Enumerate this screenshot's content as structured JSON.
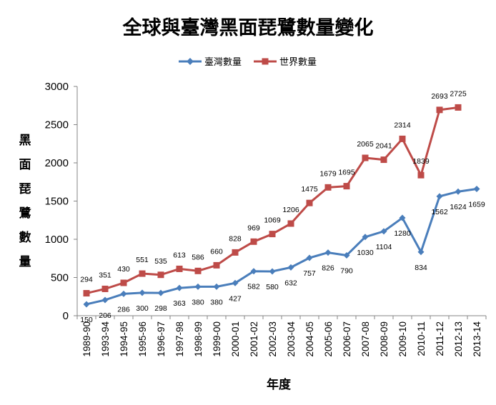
{
  "chart_data": {
    "type": "line",
    "title": "全球與臺灣黑面琵鷺數量變化",
    "xlabel": "年度",
    "ylabel": "黑面琵鷺數量",
    "ylim": [
      0,
      3000
    ],
    "yticks": [
      0,
      500,
      1000,
      1500,
      2000,
      2500,
      3000
    ],
    "grid": false,
    "legend_position": "top",
    "categories": [
      "1989-90",
      "1993-94",
      "1994-95",
      "1995-96",
      "1996-97",
      "1997-98",
      "1998-99",
      "1999-00",
      "2000-01",
      "2001-02",
      "2002-03",
      "2003-04",
      "2004-05",
      "2005-06",
      "2006-07",
      "2007-08",
      "2008-09",
      "2009-10",
      "2010-11",
      "2011-12",
      "2012-13",
      "2013-14"
    ],
    "series": [
      {
        "name": "臺灣數量",
        "color": "#4a7ebb",
        "marker": "diamond",
        "label_position": "below",
        "values": [
          150,
          206,
          286,
          300,
          298,
          363,
          380,
          380,
          427,
          582,
          580,
          632,
          757,
          826,
          790,
          1030,
          1104,
          1280,
          834,
          1562,
          1624,
          1659
        ]
      },
      {
        "name": "世界數量",
        "color": "#be4b48",
        "marker": "square",
        "label_position": "above",
        "values": [
          294,
          351,
          430,
          551,
          535,
          613,
          586,
          660,
          828,
          969,
          1069,
          1206,
          1475,
          1679,
          1695,
          2065,
          2041,
          2314,
          1839,
          2693,
          2725,
          null
        ]
      }
    ]
  }
}
